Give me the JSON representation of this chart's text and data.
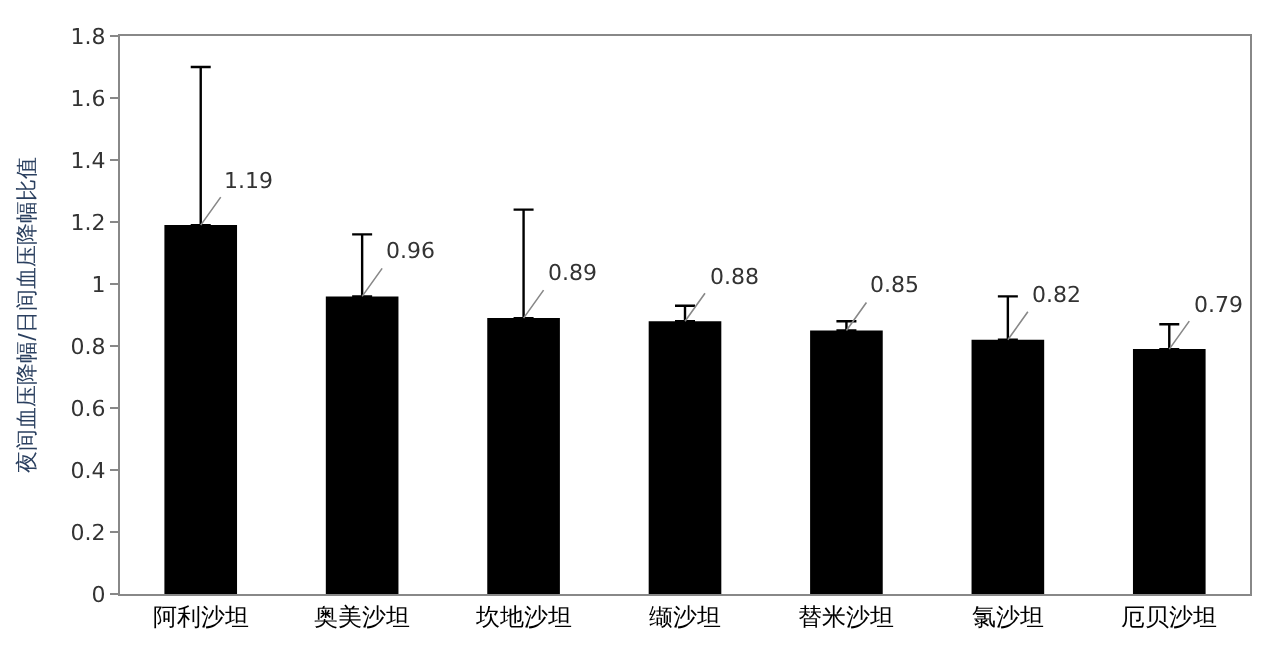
{
  "chart_data": {
    "type": "bar",
    "ylabel": "夜间血压降幅/日间血压降幅比值",
    "categories": [
      "阿利沙坦",
      "奥美沙坦",
      "坎地沙坦",
      "缬沙坦",
      "替米沙坦",
      "氯沙坦",
      "厄贝沙坦"
    ],
    "values": [
      1.19,
      0.96,
      0.89,
      0.88,
      0.85,
      0.82,
      0.79
    ],
    "errors": [
      [
        1.19,
        1.7
      ],
      [
        0.96,
        1.16
      ],
      [
        0.89,
        1.24
      ],
      [
        0.88,
        0.93
      ],
      [
        0.85,
        0.88
      ],
      [
        0.82,
        0.96
      ],
      [
        0.79,
        0.87
      ]
    ],
    "color": "#000000",
    "ylim": [
      0,
      1.8
    ],
    "yticks": [
      0,
      0.2,
      0.4,
      0.6,
      0.8,
      1,
      1.2,
      1.4,
      1.6,
      1.8
    ],
    "data_labels": true
  }
}
